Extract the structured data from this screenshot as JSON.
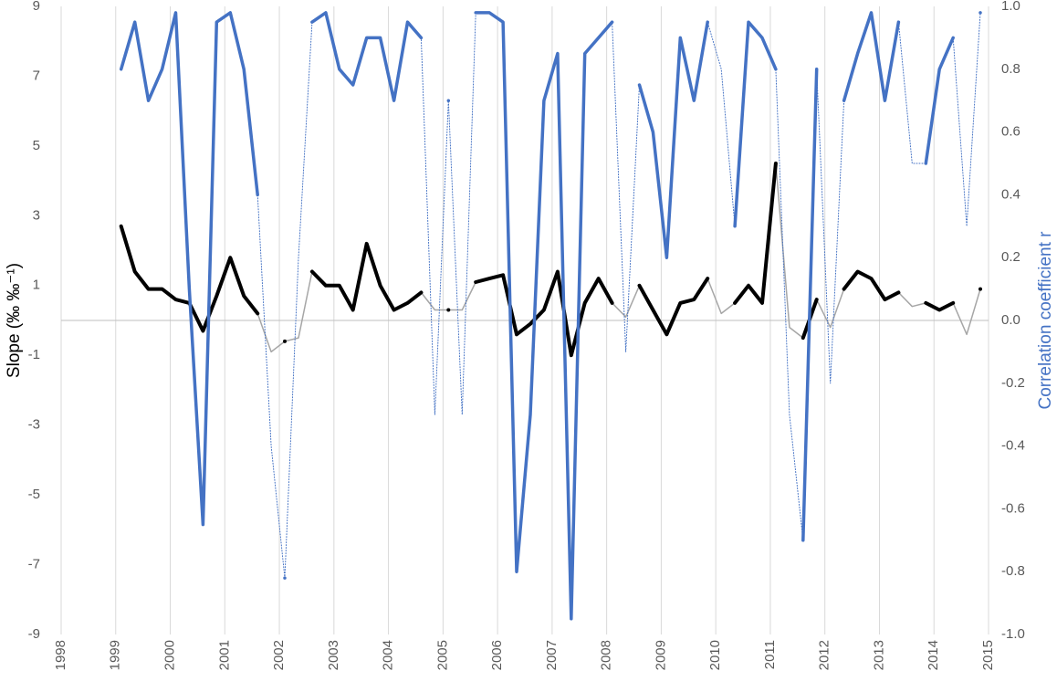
{
  "chart_data": {
    "type": "line",
    "ylabel": "Slope (‰ ‰⁻¹)",
    "y2label": "Correlation coefficient r",
    "x": [
      1999.1,
      1999.35,
      1999.6,
      1999.85,
      2000.1,
      2000.35,
      2000.6,
      2000.85,
      2001.1,
      2001.35,
      2001.6,
      2001.85,
      2002.1,
      2002.35,
      2002.6,
      2002.85,
      2003.1,
      2003.35,
      2003.6,
      2003.85,
      2004.1,
      2004.35,
      2004.6,
      2004.85,
      2005.1,
      2005.35,
      2005.6,
      2005.85,
      2006.1,
      2006.35,
      2006.6,
      2006.85,
      2007.1,
      2007.35,
      2007.6,
      2007.85,
      2008.1,
      2008.35,
      2008.6,
      2008.85,
      2009.1,
      2009.35,
      2009.6,
      2009.85,
      2010.1,
      2010.35,
      2010.6,
      2010.85,
      2011.1,
      2011.35,
      2011.6,
      2011.85,
      2012.1,
      2012.35,
      2012.6,
      2012.85,
      2013.1,
      2013.35,
      2013.6,
      2013.85,
      2014.1,
      2014.35,
      2014.6,
      2014.85
    ],
    "xlim": [
      1998,
      2015
    ],
    "xticks": [
      1998,
      1999,
      2000,
      2001,
      2002,
      2003,
      2004,
      2005,
      2006,
      2007,
      2008,
      2009,
      2010,
      2011,
      2012,
      2013,
      2014,
      2015
    ],
    "ylim": [
      -9,
      9
    ],
    "yticks": [
      -9,
      -7,
      -5,
      -3,
      -1,
      1,
      3,
      5,
      7,
      9
    ],
    "y2lim": [
      -1,
      1
    ],
    "y2ticks": [
      {
        "value": -1,
        "label": "-1.0"
      },
      -0.8,
      -0.6,
      -0.4,
      -0.2,
      {
        "value": 0,
        "label": "0.0"
      },
      0.2,
      0.4,
      0.6,
      0.8,
      {
        "value": 1,
        "label": "1.0"
      }
    ],
    "grid": true,
    "series": [
      {
        "color": "#a6a6a6",
        "width": 1.5,
        "dash": "none",
        "values": [
          2.7,
          1.4,
          0.9,
          0.9,
          0.6,
          0.5,
          -0.3,
          0.7,
          1.8,
          0.7,
          0.2,
          -0.9,
          -0.6,
          -0.5,
          1.4,
          1.0,
          1.0,
          0.3,
          2.2,
          1.0,
          0.3,
          0.5,
          0.8,
          0.3,
          0.3,
          0.3,
          1.1,
          1.2,
          1.3,
          -0.4,
          -0.1,
          0.3,
          1.4,
          -1.0,
          0.5,
          1.2,
          0.5,
          0.1,
          1.0,
          0.3,
          -0.4,
          0.5,
          0.6,
          1.2,
          0.2,
          0.5,
          1.0,
          0.5,
          4.5,
          -0.2,
          -0.5,
          0.6,
          -0.2,
          0.9,
          1.4,
          1.2,
          0.6,
          0.8,
          0.4,
          0.5,
          0.3,
          0.5,
          -0.4,
          0.9
        ]
      },
      {
        "color": "#4472c4",
        "width": 1,
        "dash": "1 2",
        "axis": "y2",
        "values": [
          0.8,
          0.95,
          0.7,
          0.8,
          0.98,
          0.1,
          -0.65,
          0.95,
          0.98,
          0.8,
          0.4,
          -0.4,
          -0.82,
          0.2,
          0.95,
          0.98,
          0.8,
          0.75,
          0.9,
          0.9,
          0.7,
          0.95,
          0.9,
          -0.3,
          0.7,
          -0.3,
          0.98,
          0.98,
          0.95,
          -0.8,
          -0.3,
          0.7,
          0.85,
          -0.95,
          0.85,
          0.9,
          0.95,
          -0.1,
          0.75,
          0.6,
          0.2,
          0.9,
          0.7,
          0.95,
          0.8,
          0.3,
          0.95,
          0.9,
          0.8,
          -0.3,
          -0.7,
          0.8,
          -0.2,
          0.7,
          0.85,
          0.98,
          0.7,
          0.95,
          0.5,
          0.5,
          0.8,
          0.9,
          0.3,
          0.98
        ]
      },
      {
        "color": "#000000",
        "width": 4,
        "dash": "none",
        "values": [
          2.7,
          1.4,
          0.9,
          0.9,
          0.6,
          0.5,
          -0.3,
          0.7,
          1.8,
          0.7,
          0.2,
          null,
          -0.6,
          null,
          1.4,
          1.0,
          1.0,
          0.3,
          2.2,
          1.0,
          0.3,
          0.5,
          0.8,
          null,
          0.3,
          null,
          1.1,
          1.2,
          1.3,
          -0.4,
          -0.1,
          0.3,
          1.4,
          -1.0,
          0.5,
          1.2,
          0.5,
          null,
          1.0,
          0.3,
          -0.4,
          0.5,
          0.6,
          1.2,
          null,
          0.5,
          1.0,
          0.5,
          4.5,
          null,
          -0.5,
          0.6,
          null,
          0.9,
          1.4,
          1.2,
          0.6,
          0.8,
          null,
          0.5,
          0.3,
          0.5,
          null,
          0.9
        ]
      },
      {
        "color": "#4472c4",
        "width": 3.5,
        "dash": "none",
        "axis": "y2",
        "values": [
          0.8,
          0.95,
          0.7,
          0.8,
          0.98,
          0.1,
          -0.65,
          0.95,
          0.98,
          0.8,
          0.4,
          null,
          -0.82,
          null,
          0.95,
          0.98,
          0.8,
          0.75,
          0.9,
          0.9,
          0.7,
          0.95,
          0.9,
          null,
          0.7,
          null,
          0.98,
          0.98,
          0.95,
          -0.8,
          -0.3,
          0.7,
          0.85,
          -0.95,
          0.85,
          0.9,
          0.95,
          null,
          0.75,
          0.6,
          0.2,
          0.9,
          0.7,
          0.95,
          null,
          0.3,
          0.95,
          0.9,
          0.8,
          null,
          -0.7,
          0.8,
          null,
          0.7,
          0.85,
          0.98,
          0.7,
          0.95,
          null,
          0.5,
          0.8,
          0.9,
          null,
          0.98
        ]
      }
    ]
  }
}
